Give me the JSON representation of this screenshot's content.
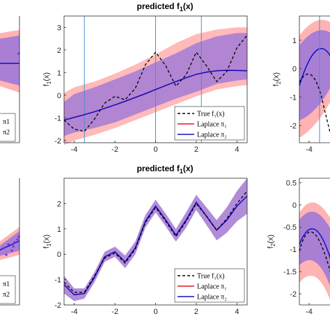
{
  "chart_data": [
    {
      "id": "left-top",
      "type": "line",
      "legend_entries": [
        "π1",
        "π2"
      ]
    },
    {
      "id": "center-top",
      "type": "line",
      "title_main": "predicted f",
      "title_sub": "1",
      "title_tail": "(x)",
      "ylabel_main": "f",
      "ylabel_sub": "1",
      "ylabel_tail": "(x)",
      "xlim": [
        -4.5,
        4.5
      ],
      "ylim": [
        -2.1,
        3.5
      ],
      "xticks": [
        -4,
        -2,
        0,
        2,
        4
      ],
      "yticks": [
        -2,
        -1,
        0,
        1,
        2,
        3
      ],
      "vlines": [
        -3.5,
        0,
        2.25
      ],
      "legend": {
        "placement": "bottom-right",
        "entries": [
          "True f₁(x)",
          "Laplace π₁",
          "Laplace π₂"
        ]
      },
      "series": [
        {
          "name": "True f₁(x)",
          "style": "dashed",
          "color": "#000000",
          "x": [
            -4.5,
            -4,
            -3.5,
            -3,
            -2.5,
            -2,
            -1.5,
            -1,
            -0.5,
            0,
            0.5,
            1,
            1.5,
            2,
            2.5,
            3,
            3.5,
            4,
            4.5
          ],
          "y": [
            -1.1,
            -1.5,
            -1.6,
            -1.05,
            -0.35,
            -0.05,
            -0.2,
            0.3,
            1.35,
            1.9,
            1.3,
            0.4,
            0.9,
            1.9,
            1.3,
            0.6,
            1.05,
            2.1,
            2.65
          ]
        },
        {
          "name": "Laplace π₁",
          "style": "solid",
          "color": "#e8161b",
          "x": [
            -4.5,
            -4,
            -3.5,
            -3,
            -2.5,
            -2,
            -1.5,
            -1,
            -0.5,
            0,
            0.5,
            1,
            1.5,
            2,
            2.5,
            3,
            3.5,
            4,
            4.5
          ],
          "y": [
            -1.1,
            -0.98,
            -0.86,
            -0.73,
            -0.58,
            -0.43,
            -0.27,
            -0.1,
            0.07,
            0.25,
            0.43,
            0.6,
            0.77,
            0.92,
            1.02,
            1.08,
            1.1,
            1.09,
            1.08
          ]
        },
        {
          "name": "Laplace π₂",
          "style": "solid",
          "color": "#1010c8",
          "x": [
            -4.5,
            -4,
            -3.5,
            -3,
            -2.5,
            -2,
            -1.5,
            -1,
            -0.5,
            0,
            0.5,
            1,
            1.5,
            2,
            2.5,
            3,
            3.5,
            4,
            4.5
          ],
          "y": [
            -1.1,
            -0.98,
            -0.86,
            -0.73,
            -0.58,
            -0.43,
            -0.27,
            -0.1,
            0.07,
            0.25,
            0.43,
            0.6,
            0.77,
            0.92,
            1.02,
            1.08,
            1.1,
            1.09,
            1.08
          ]
        }
      ],
      "bands": [
        {
          "name": "π1 band",
          "color": "#ffb3b3",
          "x": [
            -4.5,
            -4,
            -3,
            -2,
            -1,
            0,
            1,
            2,
            3,
            4,
            4.5
          ],
          "lower": [
            -2.2,
            -2.0,
            -1.75,
            -1.45,
            -1.1,
            -0.75,
            -0.4,
            -0.05,
            0.25,
            0.4,
            0.45
          ],
          "upper": [
            0.1,
            0.35,
            0.6,
            0.95,
            1.35,
            1.8,
            2.3,
            2.7,
            2.9,
            3.0,
            3.0
          ]
        },
        {
          "name": "π2 band",
          "color": "#a97fd4",
          "x": [
            -4.5,
            -4,
            -3,
            -2,
            -1,
            0,
            1,
            2,
            3,
            4,
            4.5
          ],
          "lower": [
            -1.8,
            -1.65,
            -1.45,
            -1.2,
            -0.85,
            -0.5,
            -0.15,
            0.15,
            0.5,
            0.65,
            0.7
          ],
          "upper": [
            -0.3,
            0.05,
            0.35,
            0.7,
            1.05,
            1.45,
            1.85,
            2.3,
            2.6,
            2.75,
            2.75
          ]
        }
      ]
    },
    {
      "id": "right-top",
      "type": "line",
      "ylabel_main": "f",
      "ylabel_sub": "2",
      "ylabel_tail": "(x)",
      "xticks": [
        -4
      ],
      "yticks": [
        -2,
        -1,
        0,
        1
      ]
    },
    {
      "id": "left-bottom",
      "type": "scatter",
      "legend_entries": [
        "π1",
        "π2"
      ]
    },
    {
      "id": "center-bottom",
      "type": "line",
      "title_main": "predicted f",
      "title_sub": "1",
      "title_tail": "(x)",
      "ylabel_main": "f",
      "ylabel_sub": "1",
      "ylabel_tail": "(x)",
      "xlim": [
        -4.5,
        4.5
      ],
      "ylim": [
        -2.0,
        3.0
      ],
      "xticks": [
        -4,
        -2,
        0,
        2,
        4
      ],
      "yticks": [
        -2,
        -1,
        0,
        1,
        2
      ],
      "legend": {
        "placement": "bottom-right",
        "entries": [
          "True f₁(x)",
          "Laplace π₁",
          "Laplace π₂"
        ]
      },
      "series": [
        {
          "name": "True f₁(x)",
          "style": "dashed",
          "color": "#000000",
          "x": [
            -4.5,
            -4,
            -3.5,
            -3,
            -2.5,
            -2,
            -1.5,
            -1,
            -0.5,
            0,
            0.5,
            1,
            1.5,
            2,
            2.5,
            3,
            3.5,
            4,
            4.5
          ],
          "y": [
            -1.1,
            -1.5,
            -1.5,
            -0.85,
            -0.15,
            0.05,
            -0.35,
            0.2,
            1.25,
            1.85,
            1.3,
            0.7,
            1.3,
            2.0,
            1.5,
            0.95,
            1.4,
            2.0,
            2.5
          ]
        },
        {
          "name": "Laplace π₁",
          "style": "solid",
          "color": "#e8161b",
          "x": [
            -4.5,
            -4,
            -3.5,
            -3,
            -2.5,
            -2,
            -1.5,
            -1,
            -0.5,
            0,
            0.5,
            1,
            1.5,
            2,
            2.5,
            3,
            3.5,
            4,
            4.5
          ],
          "y": [
            -1.2,
            -1.6,
            -1.55,
            -0.9,
            -0.1,
            0.1,
            -0.3,
            0.25,
            1.3,
            1.9,
            1.35,
            0.75,
            1.35,
            2.05,
            1.5,
            0.95,
            1.35,
            1.9,
            2.3
          ]
        },
        {
          "name": "Laplace π₂",
          "style": "solid",
          "color": "#1010c8",
          "x": [
            -4.5,
            -4,
            -3.5,
            -3,
            -2.5,
            -2,
            -1.5,
            -1,
            -0.5,
            0,
            0.5,
            1,
            1.5,
            2,
            2.5,
            3,
            3.5,
            4,
            4.5
          ],
          "y": [
            -1.2,
            -1.6,
            -1.55,
            -0.9,
            -0.1,
            0.1,
            -0.3,
            0.25,
            1.3,
            1.9,
            1.35,
            0.75,
            1.35,
            2.05,
            1.5,
            0.95,
            1.35,
            1.9,
            2.3
          ]
        }
      ],
      "bands": [
        {
          "name": "π2 band",
          "color": "#a97fd4",
          "x": [
            -4.5,
            -4,
            -3.5,
            -3,
            -2.5,
            -2,
            -1.5,
            -1,
            -0.5,
            0,
            0.5,
            1,
            1.5,
            2,
            2.5,
            3,
            3.5,
            4,
            4.5
          ],
          "lower": [
            -1.55,
            -1.85,
            -1.75,
            -1.1,
            -0.3,
            -0.1,
            -0.55,
            0.0,
            1.05,
            1.65,
            1.1,
            0.5,
            1.05,
            1.75,
            1.15,
            0.55,
            0.85,
            1.3,
            1.6
          ],
          "upper": [
            -0.85,
            -1.35,
            -1.35,
            -0.7,
            0.1,
            0.3,
            -0.05,
            0.5,
            1.55,
            2.15,
            1.6,
            1.0,
            1.65,
            2.35,
            1.85,
            1.35,
            1.85,
            2.5,
            3.0
          ]
        }
      ]
    },
    {
      "id": "right-bottom",
      "type": "line",
      "ylabel_main": "f",
      "ylabel_sub": "2",
      "ylabel_tail": "(x)",
      "xticks": [
        -4
      ],
      "yticks": [
        -2,
        -1.5,
        -1,
        -0.5,
        0,
        0.5
      ],
      "ytick_labels": [
        "-2",
        "-1.5",
        "-1",
        "-0.5",
        "0",
        "0.5"
      ]
    }
  ]
}
